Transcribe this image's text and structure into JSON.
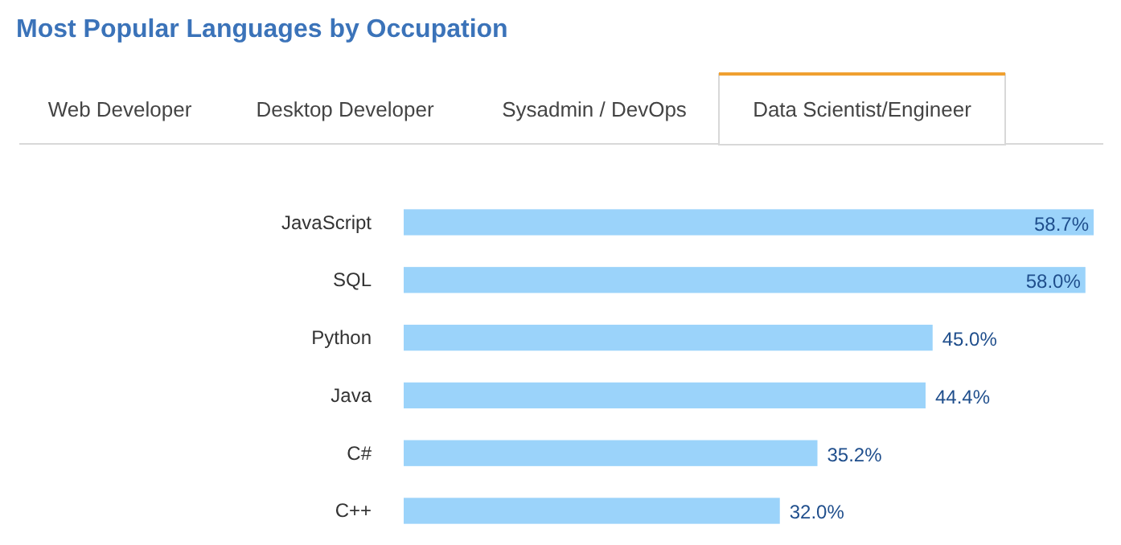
{
  "chart_data": {
    "type": "bar",
    "orientation": "horizontal",
    "title": "Most Popular Languages by Occupation",
    "annotations": [
      "Web Developer",
      "Desktop Developer",
      "Sysadmin / DevOps",
      "Data Scientist/Engineer"
    ],
    "categories": [
      "JavaScript",
      "SQL",
      "Python",
      "Java",
      "C#",
      "C++"
    ],
    "values": [
      58.7,
      58.0,
      45.0,
      44.4,
      35.2,
      32.0
    ],
    "value_labels": [
      "58.7%",
      "58.0%",
      "45.0%",
      "44.4%",
      "35.2%",
      "32.0%"
    ],
    "color": "#9bd3fa"
  }
}
